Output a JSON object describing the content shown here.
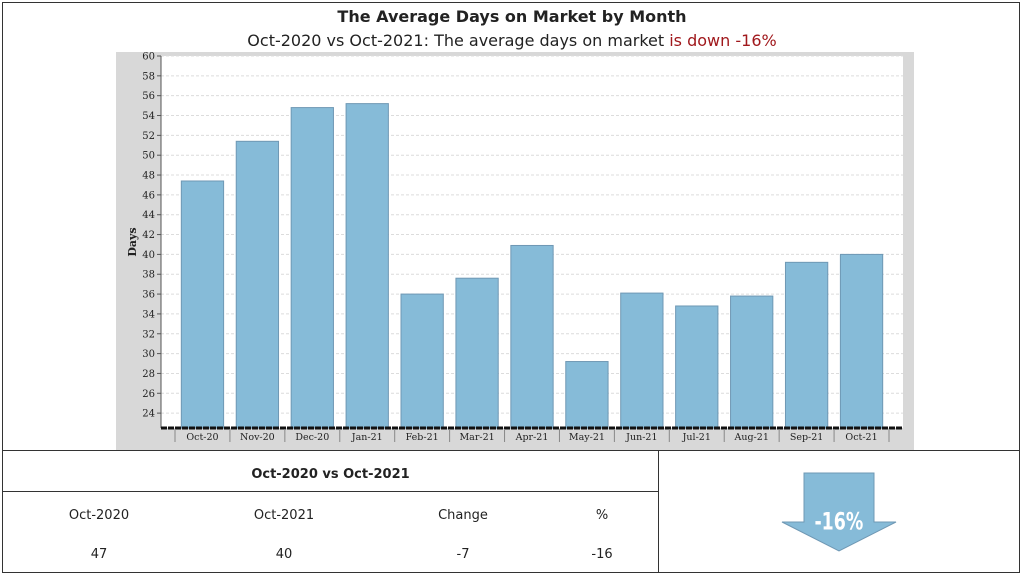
{
  "header": {
    "title": "The Average Days on Market by Month",
    "subtitle_prefix": "Oct-2020 vs Oct-2021: The average days on market ",
    "subtitle_highlight": "is down -16%",
    "highlight_color": "#a0181c"
  },
  "chart_data": {
    "type": "bar",
    "categories": [
      "Oct-20",
      "Nov-20",
      "Dec-20",
      "Jan-21",
      "Feb-21",
      "Mar-21",
      "Apr-21",
      "May-21",
      "Jun-21",
      "Jul-21",
      "Aug-21",
      "Sep-21",
      "Oct-21"
    ],
    "values": [
      47.4,
      51.4,
      54.8,
      55.2,
      36.0,
      37.6,
      40.9,
      29.2,
      36.1,
      34.8,
      35.8,
      39.2,
      40.0
    ],
    "ylabel": "Days",
    "xlabel": "",
    "ylim": [
      22.5,
      60
    ],
    "yticks": [
      24,
      26,
      28,
      30,
      32,
      34,
      36,
      38,
      40,
      42,
      44,
      46,
      48,
      50,
      52,
      54,
      56,
      58,
      60
    ],
    "grid": true,
    "bar_color": "#86bbd8",
    "bar_edge_color": "#6f98b4"
  },
  "comparison": {
    "title": "Oct-2020 vs Oct-2021",
    "headers": [
      "Oct-2020",
      "Oct-2021",
      "Change",
      "%"
    ],
    "values": [
      "47",
      "40",
      "-7",
      "-16"
    ]
  },
  "badge": {
    "label": "-16%",
    "arrow_color": "#86bbd8",
    "icon": "down-arrow-icon"
  }
}
